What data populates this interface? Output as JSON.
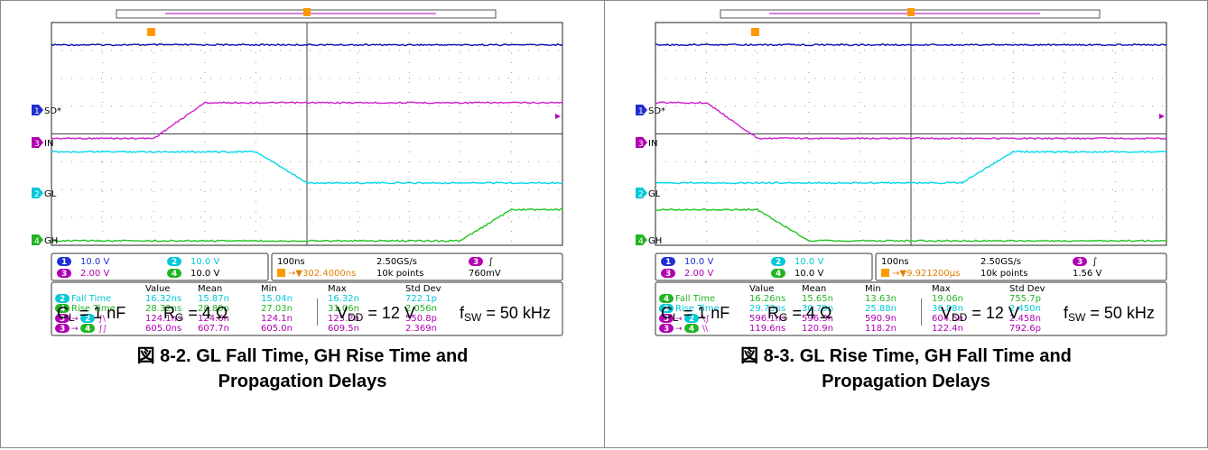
{
  "figures": [
    {
      "channel_labels": [
        "SD*",
        "IN",
        "GL",
        "GH"
      ],
      "channel_badges": [
        "1",
        "3",
        "2",
        "4"
      ],
      "settings": {
        "ch1": {
          "badge": "1",
          "scale": "10.0 V"
        },
        "ch2": {
          "badge": "2",
          "scale": "10.0 V"
        },
        "ch3": {
          "badge": "3",
          "scale": "2.00 V"
        },
        "ch4": {
          "badge": "4",
          "scale": "10.0 V"
        },
        "timebase": "100ns",
        "sample_rate": "2.50GS/s",
        "trigger_badge": "3",
        "trigger_slope": "∫",
        "trigger_time": "302.4000ns",
        "record_length": "10k points",
        "trigger_level": "760mV"
      },
      "measurements": {
        "columns": [
          "Value",
          "Mean",
          "Min",
          "Max",
          "Std Dev"
        ],
        "rows": [
          {
            "label": "Fall Time",
            "source": "2",
            "target": "",
            "edges": "",
            "color": "#00c8d8",
            "values": [
              "16.32ns",
              "15.87n",
              "15.04n",
              "16.32n",
              "722.1p"
            ]
          },
          {
            "label": "Rise Time",
            "source": "4",
            "target": "",
            "edges": "",
            "color": "#22b422",
            "values": [
              "28.32ns",
              "28.80n",
              "27.03n",
              "31.06n",
              "2.056n"
            ]
          },
          {
            "label": "",
            "source": "3",
            "target": "2",
            "edges": "∫\\",
            "color": "#b000b0",
            "values": [
              "124.1ns",
              "124.6n",
              "124.1n",
              "125.2n",
              "550.8p"
            ]
          },
          {
            "label": "",
            "source": "3",
            "target": "4",
            "edges": "∫∫",
            "color": "#b000b0",
            "values": [
              "605.0ns",
              "607.7n",
              "605.0n",
              "609.5n",
              "2.369n"
            ]
          }
        ]
      },
      "conditions": {
        "cl": "1 nF",
        "rg": "4 Ω",
        "vdd": "12 V",
        "fsw": "50 kHz"
      },
      "caption": {
        "number": "図 8-2.",
        "line1": "GL Fall Time, GH Rise Time and",
        "line2": "Propagation Delays"
      }
    },
    {
      "channel_labels": [
        "SD*",
        "IN",
        "GL",
        "GH"
      ],
      "channel_badges": [
        "1",
        "3",
        "2",
        "4"
      ],
      "settings": {
        "ch1": {
          "badge": "1",
          "scale": "10.0 V"
        },
        "ch2": {
          "badge": "2",
          "scale": "10.0 V"
        },
        "ch3": {
          "badge": "3",
          "scale": "2.00 V"
        },
        "ch4": {
          "badge": "4",
          "scale": "10.0 V"
        },
        "timebase": "100ns",
        "sample_rate": "2.50GS/s",
        "trigger_badge": "3",
        "trigger_slope": "∫",
        "trigger_time": "9.921200µs",
        "record_length": "10k points",
        "trigger_level": "1.56 V"
      },
      "measurements": {
        "columns": [
          "Value",
          "Mean",
          "Min",
          "Max",
          "Std Dev"
        ],
        "rows": [
          {
            "label": "Fall Time",
            "source": "4",
            "target": "",
            "edges": "",
            "color": "#22b422",
            "values": [
              "16.26ns",
              "15.65n",
              "13.63n",
              "19.06n",
              "755.7p"
            ]
          },
          {
            "label": "Rise Time",
            "source": "2",
            "target": "",
            "edges": "",
            "color": "#00c8d8",
            "values": [
              "29.73ns",
              "30.79n",
              "25.88n",
              "36.88n",
              "2.450n"
            ]
          },
          {
            "label": "",
            "source": "3",
            "target": "2",
            "edges": "\\∫",
            "color": "#b000b0",
            "values": [
              "596.1ns",
              "596.3n",
              "590.9n",
              "604.5n",
              "2.458n"
            ]
          },
          {
            "label": "",
            "source": "3",
            "target": "4",
            "edges": "\\\\",
            "color": "#b000b0",
            "values": [
              "119.6ns",
              "120.9n",
              "118.2n",
              "122.4n",
              "792.6p"
            ]
          }
        ]
      },
      "conditions": {
        "cl": "1 nF",
        "rg": "4 Ω",
        "vdd": "12 V",
        "fsw": "50 kHz"
      },
      "caption": {
        "number": "図 8-3.",
        "line1": "GL Rise Time, GH Fall Time and",
        "line2": "Propagation Delays"
      }
    }
  ],
  "chart_data": [
    {
      "type": "line",
      "x": [
        -5,
        -4,
        -3,
        -2,
        -1,
        0,
        1,
        2,
        3,
        4,
        5
      ],
      "series": [
        {
          "name": "SD*",
          "color": "#1010b0",
          "values": [
            9.0,
            9.0,
            9.0,
            9.0,
            9.0,
            9.0,
            9.0,
            9.0,
            9.0,
            9.0,
            9.0
          ]
        },
        {
          "name": "IN",
          "color": "#d020d0",
          "values": [
            4.8,
            4.8,
            4.8,
            6.4,
            6.4,
            6.4,
            6.4,
            6.4,
            6.4,
            6.4,
            6.4
          ]
        },
        {
          "name": "GL",
          "color": "#00d8e8",
          "values": [
            4.2,
            4.2,
            4.2,
            4.2,
            4.2,
            2.8,
            2.8,
            2.8,
            2.8,
            2.8,
            2.8
          ]
        },
        {
          "name": "GH",
          "color": "#22c422",
          "values": [
            0.2,
            0.2,
            0.2,
            0.2,
            0.2,
            0.2,
            0.2,
            0.2,
            0.2,
            1.6,
            1.6
          ]
        }
      ]
    },
    {
      "type": "line",
      "x": [
        -5,
        -4,
        -3,
        -2,
        -1,
        0,
        1,
        2,
        3,
        4,
        5
      ],
      "series": [
        {
          "name": "SD*",
          "color": "#1010b0",
          "values": [
            9.0,
            9.0,
            9.0,
            9.0,
            9.0,
            9.0,
            9.0,
            9.0,
            9.0,
            9.0,
            9.0
          ]
        },
        {
          "name": "IN",
          "color": "#d020d0",
          "values": [
            6.4,
            6.4,
            4.8,
            4.8,
            4.8,
            4.8,
            4.8,
            4.8,
            4.8,
            4.8,
            4.8
          ]
        },
        {
          "name": "GL",
          "color": "#00d8e8",
          "values": [
            2.8,
            2.8,
            2.8,
            2.8,
            2.8,
            2.8,
            2.8,
            4.2,
            4.2,
            4.2,
            4.2
          ]
        },
        {
          "name": "GH",
          "color": "#22c422",
          "values": [
            1.6,
            1.6,
            1.6,
            0.2,
            0.2,
            0.2,
            0.2,
            0.2,
            0.2,
            0.2,
            0.2
          ]
        }
      ]
    }
  ]
}
